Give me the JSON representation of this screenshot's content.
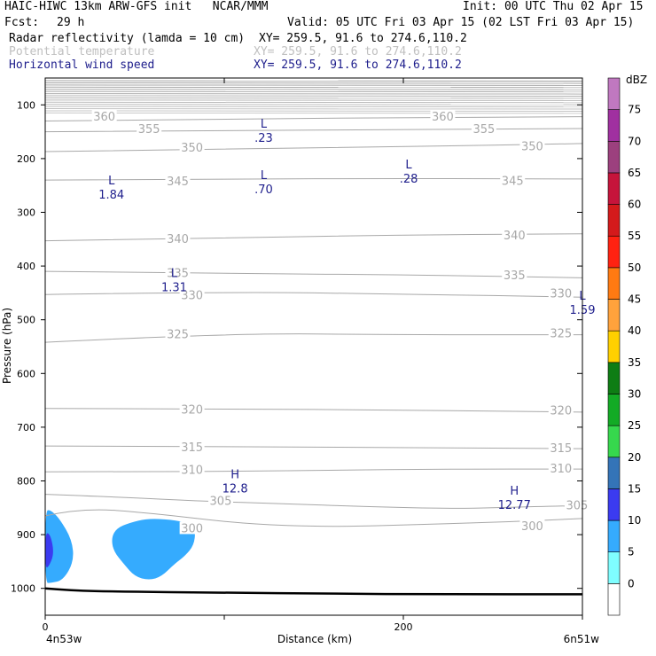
{
  "header": {
    "title_left": "HAIC-HIWC 13km ARW-GFS init   NCAR/MMM",
    "init": "Init: 00 UTC Thu 02 Apr 15",
    "fcst_label": "Fcst:",
    "fcst_value": "29 h",
    "valid": "Valid: 05 UTC Fri 03 Apr 15 (02 LST Fri 03 Apr 15)",
    "fields": [
      {
        "name": "Radar reflectivity (lamda = 10 cm)",
        "xy": "XY= 259.5, 91.6 to 274.6,110.2",
        "color": "#000000"
      },
      {
        "name": "Potential temperature",
        "xy": "XY= 259.5, 91.6 to 274.6,110.2",
        "color": "#c0c0c0"
      },
      {
        "name": "Horizontal wind speed",
        "xy": "XY= 259.5, 91.6 to 274.6,110.2",
        "color": "#1e1e8c"
      }
    ]
  },
  "chart_data": {
    "type": "cross-section",
    "xlabel": "Distance (km)",
    "ylabel": "Pressure (hPa)",
    "xlim": [
      0,
      300
    ],
    "ylim": [
      1050,
      50
    ],
    "xticks": [
      0,
      100,
      200,
      300
    ],
    "xtick_labels": [
      "0",
      "",
      "200",
      ""
    ],
    "yticks": [
      100,
      200,
      300,
      400,
      500,
      600,
      700,
      800,
      900,
      1000
    ],
    "x_start_label": "4n53w",
    "x_end_label": "6n51w",
    "theta_contours": [
      {
        "value": 300,
        "points": [
          [
            0,
            865
          ],
          [
            20,
            850
          ],
          [
            60,
            860
          ],
          [
            110,
            880
          ],
          [
            160,
            886
          ],
          [
            220,
            880
          ],
          [
            260,
            876
          ],
          [
            300,
            870
          ]
        ]
      },
      {
        "value": 305,
        "points": [
          [
            0,
            825
          ],
          [
            40,
            830
          ],
          [
            90,
            838
          ],
          [
            130,
            842
          ],
          [
            180,
            848
          ],
          [
            230,
            852
          ],
          [
            270,
            848
          ],
          [
            300,
            846
          ]
        ]
      },
      {
        "value": 310,
        "points": [
          [
            0,
            783
          ],
          [
            60,
            783
          ],
          [
            110,
            782
          ],
          [
            160,
            780
          ],
          [
            220,
            778
          ],
          [
            300,
            778
          ]
        ]
      },
      {
        "value": 315,
        "points": [
          [
            0,
            735
          ],
          [
            100,
            736
          ],
          [
            200,
            738
          ],
          [
            300,
            740
          ]
        ]
      },
      {
        "value": 320,
        "points": [
          [
            0,
            665
          ],
          [
            100,
            666
          ],
          [
            200,
            668
          ],
          [
            300,
            672
          ]
        ]
      },
      {
        "value": 325,
        "points": [
          [
            0,
            542
          ],
          [
            100,
            525
          ],
          [
            200,
            528
          ],
          [
            300,
            528
          ]
        ]
      },
      {
        "value": 330,
        "points": [
          [
            0,
            453
          ],
          [
            100,
            448
          ],
          [
            200,
            452
          ],
          [
            300,
            458
          ]
        ]
      },
      {
        "value": 335,
        "points": [
          [
            0,
            410
          ],
          [
            100,
            414
          ],
          [
            200,
            416
          ],
          [
            300,
            422
          ]
        ]
      },
      {
        "value": 340,
        "points": [
          [
            0,
            353
          ],
          [
            100,
            348
          ],
          [
            200,
            342
          ],
          [
            300,
            340
          ]
        ]
      },
      {
        "value": 345,
        "points": [
          [
            0,
            240
          ],
          [
            100,
            238
          ],
          [
            200,
            237
          ],
          [
            300,
            238
          ]
        ]
      },
      {
        "value": 350,
        "points": [
          [
            0,
            187
          ],
          [
            100,
            182
          ],
          [
            200,
            178
          ],
          [
            300,
            172
          ]
        ]
      },
      {
        "value": 355,
        "points": [
          [
            0,
            150
          ],
          [
            100,
            148
          ],
          [
            200,
            146
          ],
          [
            300,
            144
          ]
        ]
      },
      {
        "value": 360,
        "points": [
          [
            0,
            130
          ],
          [
            100,
            126
          ],
          [
            200,
            124
          ],
          [
            300,
            122
          ]
        ]
      }
    ],
    "contour_labels": [
      {
        "text": "360",
        "x": 33,
        "p": 123
      },
      {
        "text": "360",
        "x": 222,
        "p": 123
      },
      {
        "text": "355",
        "x": 58,
        "p": 146
      },
      {
        "text": "355",
        "x": 245,
        "p": 146
      },
      {
        "text": "350",
        "x": 82,
        "p": 180
      },
      {
        "text": "350",
        "x": 272,
        "p": 178
      },
      {
        "text": "345",
        "x": 74,
        "p": 243
      },
      {
        "text": "345",
        "x": 261,
        "p": 242
      },
      {
        "text": "340",
        "x": 74,
        "p": 350
      },
      {
        "text": "340",
        "x": 262,
        "p": 344
      },
      {
        "text": "335",
        "x": 74,
        "p": 414
      },
      {
        "text": "335",
        "x": 262,
        "p": 418
      },
      {
        "text": "330",
        "x": 82,
        "p": 455
      },
      {
        "text": "330",
        "x": 288,
        "p": 452
      },
      {
        "text": "325",
        "x": 74,
        "p": 528
      },
      {
        "text": "325",
        "x": 288,
        "p": 526
      },
      {
        "text": "320",
        "x": 82,
        "p": 668
      },
      {
        "text": "320",
        "x": 288,
        "p": 670
      },
      {
        "text": "315",
        "x": 82,
        "p": 738
      },
      {
        "text": "315",
        "x": 288,
        "p": 740
      },
      {
        "text": "310",
        "x": 82,
        "p": 780
      },
      {
        "text": "310",
        "x": 288,
        "p": 778
      },
      {
        "text": "305",
        "x": 98,
        "p": 838
      },
      {
        "text": "305",
        "x": 297,
        "p": 846
      },
      {
        "text": "300",
        "x": 82,
        "p": 889
      },
      {
        "text": "300",
        "x": 272,
        "p": 885
      }
    ],
    "wind_extrema": [
      {
        "type": "L",
        "value": "1.84",
        "x": 37,
        "p": 268
      },
      {
        "type": "L",
        "value": ".23",
        "x": 122,
        "p": 162
      },
      {
        "type": "L",
        "value": ".70",
        "x": 122,
        "p": 258
      },
      {
        "type": "L",
        "value": ".28",
        "x": 203,
        "p": 238
      },
      {
        "type": "L",
        "value": "1.31",
        "x": 72,
        "p": 440
      },
      {
        "type": "L",
        "value": "1.59",
        "x": 300,
        "p": 482
      },
      {
        "type": "H",
        "value": "12.8",
        "x": 106,
        "p": 815
      },
      {
        "type": "H",
        "value": "12.77",
        "x": 262,
        "p": 845
      }
    ],
    "terrain": [
      [
        0,
        1000
      ],
      [
        15,
        1004
      ],
      [
        40,
        1006
      ],
      [
        100,
        1008
      ],
      [
        160,
        1010
      ],
      [
        220,
        1011
      ],
      [
        300,
        1011
      ]
    ],
    "reflectivity_regions": [
      {
        "dbz": 5,
        "points": [
          [
            0,
            855
          ],
          [
            3,
            854
          ],
          [
            8,
            870
          ],
          [
            15,
            910
          ],
          [
            16,
            950
          ],
          [
            10,
            985
          ],
          [
            3,
            990
          ],
          [
            0,
            990
          ]
        ]
      },
      {
        "dbz": 10,
        "points": [
          [
            0,
            895
          ],
          [
            3,
            900
          ],
          [
            5,
            935
          ],
          [
            2,
            960
          ],
          [
            0,
            962
          ]
        ]
      },
      {
        "dbz": 5,
        "points": [
          [
            47,
            878
          ],
          [
            57,
            870
          ],
          [
            70,
            872
          ],
          [
            80,
            878
          ],
          [
            84,
            892
          ],
          [
            83,
            920
          ],
          [
            78,
            940
          ],
          [
            72,
            955
          ],
          [
            65,
            978
          ],
          [
            58,
            985
          ],
          [
            50,
            978
          ],
          [
            44,
            955
          ],
          [
            38,
            930
          ],
          [
            37,
            905
          ],
          [
            40,
            888
          ]
        ]
      }
    ],
    "colorbar": {
      "unit": "dBZ",
      "labels": [
        "0",
        "5",
        "10",
        "15",
        "20",
        "25",
        "30",
        "35",
        "40",
        "45",
        "50",
        "55",
        "60",
        "65",
        "70",
        "75"
      ],
      "colors": [
        "#ffffff",
        "#7ffeff",
        "#35abfe",
        "#3b3bf0",
        "#3474b8",
        "#36d84d",
        "#13ab25",
        "#0e7d14",
        "#ffd000",
        "#ffa23c",
        "#ff7a12",
        "#ff2211",
        "#d41a1b",
        "#c6143b",
        "#9c407e",
        "#a030a0",
        "#c078c0"
      ]
    }
  }
}
